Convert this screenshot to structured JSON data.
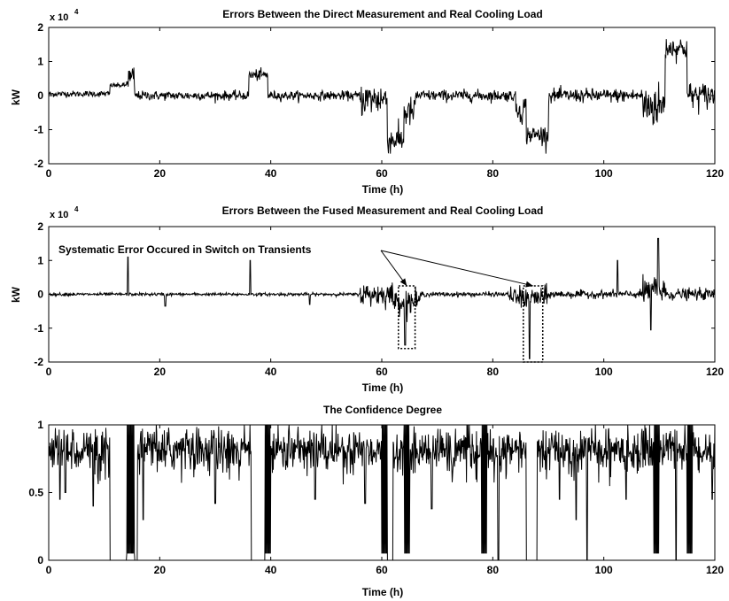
{
  "chart_data": [
    {
      "type": "line",
      "title": "Errors Between the Direct Measurement and Real Cooling Load",
      "xlabel": "Time (h)",
      "ylabel": "kW",
      "exponent_label": "x 10",
      "exponent_power": "4",
      "xlim": [
        0,
        120
      ],
      "ylim": [
        -2,
        2
      ],
      "xticks": [
        "0",
        "20",
        "40",
        "60",
        "80",
        "100",
        "120"
      ],
      "yticks": [
        "-2",
        "-1",
        "0",
        "1",
        "2"
      ],
      "line_color": "#000000",
      "segments": [
        {
          "x": [
            0,
            11
          ],
          "level": 0.05,
          "noise": 0.08
        },
        {
          "x": [
            11,
            14
          ],
          "level": 0.3,
          "noise": 0.06
        },
        {
          "x": [
            14,
            15.5
          ],
          "level": 0.5,
          "noise": 0.35
        },
        {
          "x": [
            15.5,
            36
          ],
          "level": 0.0,
          "noise": 0.12
        },
        {
          "x": [
            36,
            39.5
          ],
          "level": 0.6,
          "noise": 0.15
        },
        {
          "x": [
            39.5,
            56
          ],
          "level": 0.0,
          "noise": 0.12
        },
        {
          "x": [
            56,
            61
          ],
          "level": -0.1,
          "noise": 0.45
        },
        {
          "x": [
            61,
            64
          ],
          "level": -1.3,
          "noise": 0.35
        },
        {
          "x": [
            64,
            66
          ],
          "level": -0.5,
          "noise": 0.4
        },
        {
          "x": [
            66,
            84
          ],
          "level": 0.0,
          "noise": 0.15
        },
        {
          "x": [
            84,
            86
          ],
          "level": -0.4,
          "noise": 0.4
        },
        {
          "x": [
            86,
            90
          ],
          "level": -1.15,
          "noise": 0.25
        },
        {
          "x": [
            90,
            107
          ],
          "level": 0.0,
          "noise": 0.18
        },
        {
          "x": [
            107,
            111
          ],
          "level": -0.3,
          "noise": 0.6
        },
        {
          "x": [
            111,
            115
          ],
          "level": 1.4,
          "noise": 0.3
        },
        {
          "x": [
            115,
            120
          ],
          "level": 0.0,
          "noise": 0.35
        }
      ]
    },
    {
      "type": "line",
      "title": "Errors Between the Fused Measurement and Real Cooling Load",
      "xlabel": "Time (h)",
      "ylabel": "kW",
      "exponent_label": "x 10",
      "exponent_power": "4",
      "xlim": [
        0,
        120
      ],
      "ylim": [
        -2,
        2
      ],
      "xticks": [
        "0",
        "20",
        "40",
        "60",
        "80",
        "100",
        "120"
      ],
      "yticks": [
        "-2",
        "-1",
        "0",
        "1",
        "2"
      ],
      "line_color": "#000000",
      "annotation": {
        "text": "Systematic Error Occured in Switch on Transients",
        "boxes": [
          {
            "x": [
              63,
              66
            ],
            "y": [
              -1.6,
              0.25
            ]
          },
          {
            "x": [
              85.5,
              89
            ],
            "y": [
              -2.0,
              0.25
            ]
          }
        ]
      },
      "spikes": [
        {
          "x": 14.3,
          "y": 1.1
        },
        {
          "x": 21,
          "y": -0.35
        },
        {
          "x": 36.3,
          "y": 1.0
        },
        {
          "x": 47,
          "y": -0.3
        },
        {
          "x": 64.2,
          "y": -1.5
        },
        {
          "x": 86.6,
          "y": -1.9
        },
        {
          "x": 102.5,
          "y": 1.0
        },
        {
          "x": 109.8,
          "y": 1.65
        },
        {
          "x": 108.5,
          "y": -1.05
        }
      ],
      "segments": [
        {
          "x": [
            0,
            56
          ],
          "level": 0.0,
          "noise": 0.04
        },
        {
          "x": [
            56,
            62
          ],
          "level": 0.0,
          "noise": 0.3
        },
        {
          "x": [
            62,
            67
          ],
          "level": -0.2,
          "noise": 0.3
        },
        {
          "x": [
            67,
            83
          ],
          "level": 0.0,
          "noise": 0.06
        },
        {
          "x": [
            83,
            90
          ],
          "level": -0.1,
          "noise": 0.3
        },
        {
          "x": [
            90,
            107
          ],
          "level": 0.0,
          "noise": 0.1
        },
        {
          "x": [
            107,
            111
          ],
          "level": 0.1,
          "noise": 0.5
        },
        {
          "x": [
            111,
            120
          ],
          "level": 0.0,
          "noise": 0.15
        }
      ]
    },
    {
      "type": "line",
      "title": "The Confidence Degree",
      "xlabel": "Time (h)",
      "ylabel": "",
      "xlim": [
        0,
        120
      ],
      "ylim": [
        0,
        1
      ],
      "xticks": [
        "0",
        "20",
        "40",
        "60",
        "80",
        "100",
        "120"
      ],
      "yticks": [
        "0",
        "0.5",
        "1"
      ],
      "line_color": "#000000",
      "zero_intervals": [
        [
          11,
          14
        ],
        [
          15.5,
          16
        ],
        [
          36.5,
          39
        ],
        [
          61,
          62
        ],
        [
          86,
          88
        ]
      ],
      "one_intervals": [
        [
          14,
          15.5
        ],
        [
          39,
          40
        ],
        [
          60,
          61
        ],
        [
          64,
          65
        ],
        [
          78,
          79
        ],
        [
          109,
          110
        ],
        [
          115,
          116
        ]
      ],
      "drops": [
        {
          "x": 2,
          "y": 0.45
        },
        {
          "x": 3,
          "y": 0.5
        },
        {
          "x": 8,
          "y": 0.4
        },
        {
          "x": 17,
          "y": 0.3
        },
        {
          "x": 30,
          "y": 0.42
        },
        {
          "x": 48,
          "y": 0.45
        },
        {
          "x": 57,
          "y": 0.42
        },
        {
          "x": 69,
          "y": 0.38
        },
        {
          "x": 81,
          "y": 0.0
        },
        {
          "x": 92,
          "y": 0.45
        },
        {
          "x": 95,
          "y": 0.3
        },
        {
          "x": 97,
          "y": 0.0
        },
        {
          "x": 104,
          "y": 0.45
        },
        {
          "x": 113,
          "y": 0.0
        },
        {
          "x": 119.5,
          "y": 0.45
        }
      ],
      "base_level": 0.82,
      "noise": 0.08
    }
  ]
}
